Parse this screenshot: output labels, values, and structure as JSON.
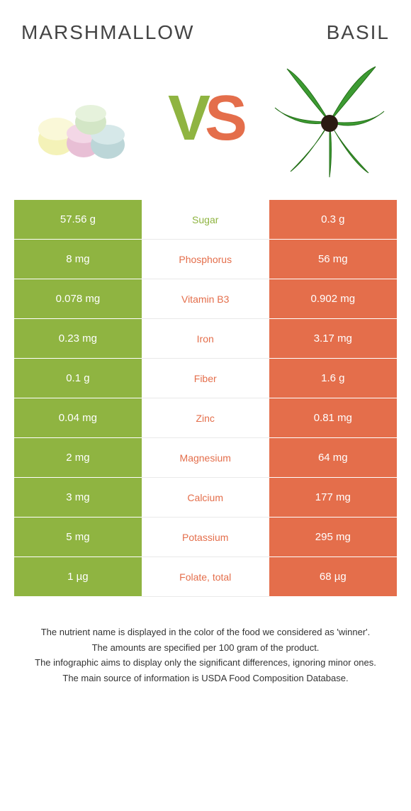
{
  "left_food": {
    "name": "Marshmallow",
    "color": "#8fb441"
  },
  "right_food": {
    "name": "Basil",
    "color": "#e46e4b"
  },
  "vs_label": {
    "v": "V",
    "s": "S"
  },
  "row_border_color": "#ffffff",
  "mid_border_color": "#e9e9e9",
  "rows": [
    {
      "nutrient": "Sugar",
      "left": "57.56 g",
      "right": "0.3 g",
      "winner": "left"
    },
    {
      "nutrient": "Phosphorus",
      "left": "8 mg",
      "right": "56 mg",
      "winner": "right"
    },
    {
      "nutrient": "Vitamin B3",
      "left": "0.078 mg",
      "right": "0.902 mg",
      "winner": "right"
    },
    {
      "nutrient": "Iron",
      "left": "0.23 mg",
      "right": "3.17 mg",
      "winner": "right"
    },
    {
      "nutrient": "Fiber",
      "left": "0.1 g",
      "right": "1.6 g",
      "winner": "right"
    },
    {
      "nutrient": "Zinc",
      "left": "0.04 mg",
      "right": "0.81 mg",
      "winner": "right"
    },
    {
      "nutrient": "Magnesium",
      "left": "2 mg",
      "right": "64 mg",
      "winner": "right"
    },
    {
      "nutrient": "Calcium",
      "left": "3 mg",
      "right": "177 mg",
      "winner": "right"
    },
    {
      "nutrient": "Potassium",
      "left": "5 mg",
      "right": "295 mg",
      "winner": "right"
    },
    {
      "nutrient": "Folate, total",
      "left": "1 µg",
      "right": "68 µg",
      "winner": "right"
    }
  ],
  "footnotes": [
    "The nutrient name is displayed in the color of the food we considered as 'winner'.",
    "The amounts are specified per 100 gram of the product.",
    "The infographic aims to display only the significant differences, ignoring minor ones.",
    "The main source of information is USDA Food Composition Database."
  ]
}
